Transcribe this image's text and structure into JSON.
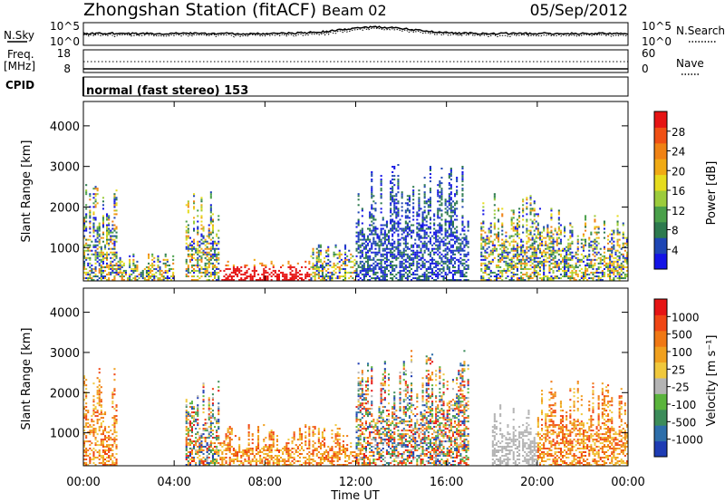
{
  "header": {
    "station": "Zhongshan Station (fitACF)",
    "beam": "Beam 02",
    "date": "05/Sep/2012"
  },
  "noise_panel": {
    "left_label": "N.Sky",
    "left_ticks": [
      "10^5",
      "10^0"
    ],
    "right_ticks": [
      "10^5",
      "10^0"
    ],
    "right_label": "N.Search"
  },
  "freq_panel": {
    "left_label_1": "Freq.",
    "left_label_2": "[MHz]",
    "left_ticks": [
      "18",
      "8"
    ],
    "right_ticks": [
      "60",
      "0"
    ],
    "right_label": "Nave"
  },
  "cpid": {
    "label": "CPID",
    "text": "normal (fast stereo) 153"
  },
  "chart_data": [
    {
      "type": "heatmap",
      "quantity": "Power",
      "ylabel": "Slant Range [km]",
      "xlabel": "Time UT",
      "ylim": [
        180,
        4600
      ],
      "yticks": [
        "1000",
        "2000",
        "3000",
        "4000"
      ],
      "xlim_hours": [
        0,
        24
      ],
      "colorbar": {
        "label": "Power [dB]",
        "ticks": [
          "4",
          "8",
          "12",
          "16",
          "20",
          "24",
          "28"
        ],
        "colors": [
          "#1414e6",
          "#1e46b4",
          "#2d7a4e",
          "#4aa04a",
          "#9ccc3c",
          "#e6dc1e",
          "#f0aa14",
          "#f08214",
          "#f05014",
          "#e61414"
        ]
      },
      "echo_regions": [
        {
          "t_start": 0.0,
          "t_end": 1.5,
          "r_min": 180,
          "r_max": 2600,
          "level": "mixed"
        },
        {
          "t_start": 1.5,
          "t_end": 4.0,
          "r_min": 180,
          "r_max": 900,
          "level": "mixed"
        },
        {
          "t_start": 4.5,
          "t_end": 6.0,
          "r_min": 180,
          "r_max": 2400,
          "level": "mixed"
        },
        {
          "t_start": 6.0,
          "t_end": 10.0,
          "r_min": 180,
          "r_max": 700,
          "level": "strong"
        },
        {
          "t_start": 10.0,
          "t_end": 12.0,
          "r_min": 180,
          "r_max": 1200,
          "level": "mixed"
        },
        {
          "t_start": 12.0,
          "t_end": 17.0,
          "r_min": 180,
          "r_max": 3100,
          "level": "weak"
        },
        {
          "t_start": 17.5,
          "t_end": 21.5,
          "r_min": 180,
          "r_max": 2400,
          "level": "mixed"
        },
        {
          "t_start": 21.5,
          "t_end": 24.0,
          "r_min": 180,
          "r_max": 1800,
          "level": "mixed"
        }
      ]
    },
    {
      "type": "heatmap",
      "quantity": "Velocity",
      "ylabel": "Slant Range [km]",
      "xlabel": "Time UT",
      "ylim": [
        180,
        4600
      ],
      "yticks": [
        "1000",
        "2000",
        "3000",
        "4000"
      ],
      "xlim_hours": [
        0,
        24
      ],
      "colorbar": {
        "label": "Velocity [m s⁻¹]",
        "ticks": [
          "1000",
          "500",
          "100",
          "25",
          "-25",
          "-100",
          "-500",
          "-1000"
        ],
        "colors": [
          "#1e3cb4",
          "#2d6eaa",
          "#3c8c5a",
          "#5ab43c",
          "#b4b4b4",
          "#f0c83c",
          "#f0a01e",
          "#f07814",
          "#f04614",
          "#e61414"
        ]
      },
      "echo_regions": [
        {
          "t_start": 0.0,
          "t_end": 1.5,
          "r_min": 180,
          "r_max": 2600,
          "flow": "away"
        },
        {
          "t_start": 4.5,
          "t_end": 6.0,
          "r_min": 180,
          "r_max": 2400,
          "flow": "mixed"
        },
        {
          "t_start": 6.0,
          "t_end": 12.0,
          "r_min": 180,
          "r_max": 1200,
          "flow": "away"
        },
        {
          "t_start": 12.0,
          "t_end": 17.0,
          "r_min": 180,
          "r_max": 3100,
          "flow": "mixed"
        },
        {
          "t_start": 18.0,
          "t_end": 20.0,
          "r_min": 180,
          "r_max": 1800,
          "flow": "ground"
        },
        {
          "t_start": 20.0,
          "t_end": 24.0,
          "r_min": 180,
          "r_max": 2400,
          "flow": "away"
        }
      ]
    }
  ],
  "x_axis": {
    "ticks": [
      "00:00",
      "04:00",
      "08:00",
      "12:00",
      "16:00",
      "20:00",
      "00:00"
    ],
    "label": "Time UT"
  }
}
